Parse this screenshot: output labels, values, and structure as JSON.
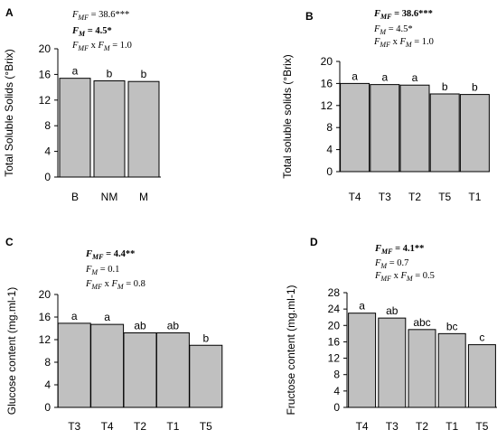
{
  "colors": {
    "bar_fill": "#c0c0c0",
    "bar_stroke": "#000000",
    "text": "#000000"
  },
  "chart_data": [
    {
      "type": "bar",
      "panel_label": "A",
      "ylabel": "Total Soluble Solids (°Brix)",
      "ylim": [
        0,
        20
      ],
      "yticks": [
        "0",
        "4",
        "8",
        "12",
        "16",
        "20"
      ],
      "categories": [
        "B",
        "NM",
        "M"
      ],
      "values": [
        15.4,
        15.0,
        14.9
      ],
      "letters": [
        "a",
        "b",
        "b"
      ],
      "stats": [
        {
          "prefix": "F",
          "sub": "MF",
          "value": " = 38.6***",
          "bold": false
        },
        {
          "prefix": "F",
          "sub": "M",
          "value": " = 4.5*",
          "bold": true
        },
        {
          "prefix": "F",
          "sub": "MF",
          "mid": " x ",
          "prefix2": "F",
          "sub2": "M",
          "value": " = 1.0",
          "bold": false
        }
      ]
    },
    {
      "type": "bar",
      "panel_label": "B",
      "ylabel": "Total soluble solids (°Brix)",
      "ylim": [
        0,
        20
      ],
      "yticks": [
        "0",
        "4",
        "8",
        "12",
        "16",
        "20"
      ],
      "categories": [
        "T4",
        "T3",
        "T2",
        "T5",
        "T1"
      ],
      "values": [
        16.0,
        15.8,
        15.7,
        14.1,
        14.0
      ],
      "letters": [
        "a",
        "a",
        "a",
        "b",
        "b"
      ],
      "stats": [
        {
          "prefix": "F",
          "sub": "MF",
          "value": " = 38.6***",
          "bold": true
        },
        {
          "prefix": "F",
          "sub": "M",
          "value": " = 4.5*",
          "bold": false
        },
        {
          "prefix": "F",
          "sub": "MF",
          "mid": " x ",
          "prefix2": "F",
          "sub2": "M",
          "value": " = 1.0",
          "bold": false
        }
      ]
    },
    {
      "type": "bar",
      "panel_label": "C",
      "ylabel": "Glucose content (mg.ml-1)",
      "ylim": [
        0,
        20
      ],
      "yticks": [
        "0",
        "4",
        "8",
        "12",
        "16",
        "20"
      ],
      "categories": [
        "T3",
        "T4",
        "T2",
        "T1",
        "T5"
      ],
      "values": [
        14.9,
        14.7,
        13.2,
        13.2,
        11.0
      ],
      "letters": [
        "a",
        "a",
        "ab",
        "ab",
        "b"
      ],
      "stats": [
        {
          "prefix": "F",
          "sub": "MF",
          "value": " = 4.4**",
          "bold": true
        },
        {
          "prefix": "F",
          "sub": "M",
          "value": " = 0.1",
          "bold": false
        },
        {
          "prefix": "F",
          "sub": "MF",
          "mid": " x ",
          "prefix2": "F",
          "sub2": "M",
          "value": " = 0.8",
          "bold": false
        }
      ]
    },
    {
      "type": "bar",
      "panel_label": "D",
      "ylabel": "Fructose content (mg.ml-1)",
      "ylim": [
        0,
        28
      ],
      "yticks": [
        "0",
        "4",
        "8",
        "12",
        "16",
        "20",
        "24",
        "28"
      ],
      "categories": [
        "T4",
        "T3",
        "T2",
        "T1",
        "T5"
      ],
      "values": [
        23.0,
        21.8,
        19.0,
        18.0,
        15.3
      ],
      "letters": [
        "a",
        "ab",
        "abc",
        "bc",
        "c"
      ],
      "stats": [
        {
          "prefix": "F",
          "sub": "MF",
          "value": " = 4.1**",
          "bold": true
        },
        {
          "prefix": "F",
          "sub": "M",
          "value": " = 0.7",
          "bold": false
        },
        {
          "prefix": "F",
          "sub": "MF",
          "mid": " x ",
          "prefix2": "F",
          "sub2": "M",
          "value": " = 0.5",
          "bold": false
        }
      ]
    }
  ]
}
